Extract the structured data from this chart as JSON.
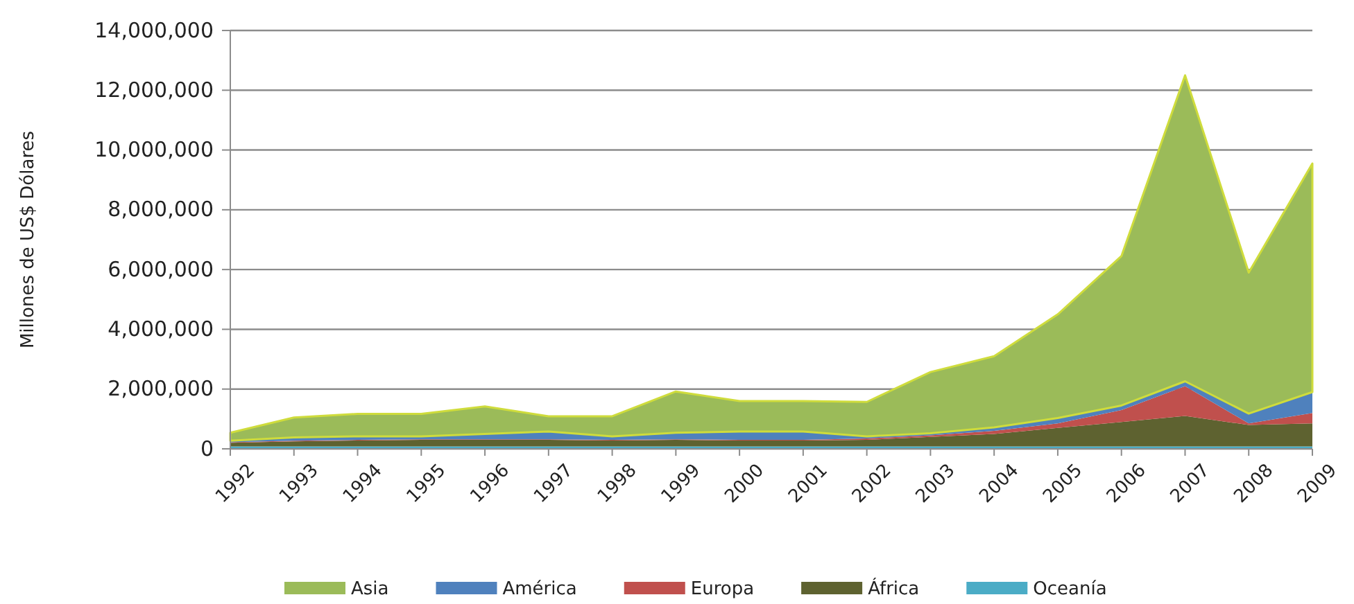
{
  "chart_data": {
    "type": "area",
    "stacked": true,
    "ylabel": "Millones de US$ Dólares",
    "categories": [
      "1992",
      "1993",
      "1994",
      "1995",
      "1996",
      "1997",
      "1998",
      "1999",
      "2000",
      "2001",
      "2002",
      "2003",
      "2004",
      "2005",
      "2006",
      "2007",
      "2008",
      "2009"
    ],
    "series": [
      {
        "name": "Oceanía",
        "color": "#4bacc6",
        "values": [
          80000,
          80000,
          80000,
          80000,
          80000,
          80000,
          80000,
          80000,
          80000,
          80000,
          80000,
          80000,
          80000,
          80000,
          80000,
          80000,
          80000,
          80000
        ]
      },
      {
        "name": "África",
        "color": "#5e6230",
        "values": [
          120000,
          170000,
          200000,
          220000,
          220000,
          220000,
          200000,
          220000,
          200000,
          200000,
          220000,
          320000,
          420000,
          620000,
          820000,
          1020000,
          720000,
          770000
        ]
      },
      {
        "name": "Europa",
        "color": "#c0504d",
        "values": [
          20000,
          20000,
          20000,
          20000,
          20000,
          20000,
          20000,
          20000,
          20000,
          20000,
          50000,
          50000,
          100000,
          150000,
          400000,
          1000000,
          50000,
          350000
        ]
      },
      {
        "name": "América",
        "color": "#4f81bd",
        "values": [
          50000,
          110000,
          120000,
          100000,
          180000,
          260000,
          120000,
          220000,
          280000,
          280000,
          70000,
          70000,
          120000,
          180000,
          150000,
          160000,
          330000,
          700000
        ]
      },
      {
        "name": "Asia",
        "color": "#9bbb59",
        "values": [
          270000,
          670000,
          750000,
          750000,
          920000,
          510000,
          670000,
          1380000,
          1020000,
          1020000,
          1150000,
          2050000,
          2380000,
          3470000,
          5000000,
          10240000,
          4720000,
          7650000
        ]
      }
    ],
    "ylim": [
      0,
      14000000
    ],
    "yticks": [
      {
        "value": 0,
        "label": "0"
      },
      {
        "value": 2000000,
        "label": "2,000,000"
      },
      {
        "value": 4000000,
        "label": "4,000,000"
      },
      {
        "value": 6000000,
        "label": "6,000,000"
      },
      {
        "value": 8000000,
        "label": "8,000,000"
      },
      {
        "value": 10000000,
        "label": "10,000,000"
      },
      {
        "value": 12000000,
        "label": "12,000,000"
      },
      {
        "value": 14000000,
        "label": "14,000,000"
      }
    ],
    "grid": "y",
    "legend": "bottom"
  }
}
